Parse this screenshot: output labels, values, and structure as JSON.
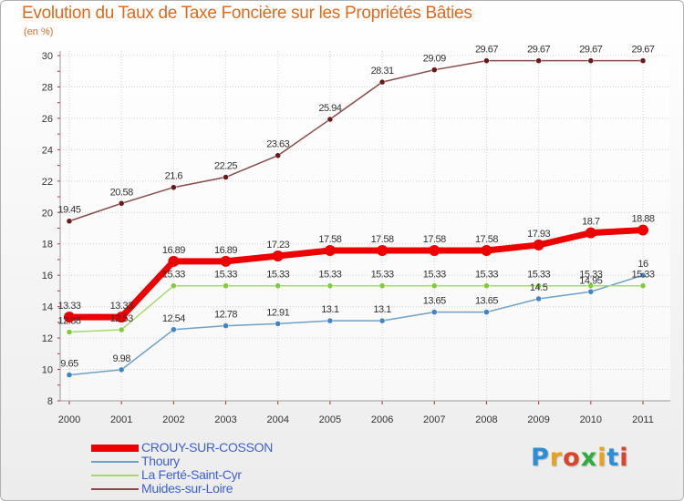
{
  "title": "Evolution du Taux de Taxe Foncière sur les Propriétés Bâties",
  "unit": "(en %)",
  "brand": {
    "text": "Proxiti",
    "letter_colors": [
      "#2c8fd6",
      "#e8a21c",
      "#d8452a",
      "#2cae3c",
      "#e8a21c",
      "#2c8fd6",
      "#d8452a"
    ]
  },
  "chart_data": {
    "type": "line",
    "title": "Evolution du Taux de Taxe Foncière sur les Propriétés Bâties",
    "ylabel": "(en %)",
    "xlabel": "",
    "x": [
      "2000",
      "2001",
      "2002",
      "2003",
      "2004",
      "2005",
      "2006",
      "2007",
      "2008",
      "2009",
      "2010",
      "2011"
    ],
    "ylim": [
      8,
      30
    ],
    "yticks": [
      8,
      10,
      12,
      14,
      16,
      18,
      20,
      22,
      24,
      26,
      28,
      30
    ],
    "grid": true,
    "series": [
      {
        "name": "CROUY-SUR-COSSON",
        "color": "#ee0000",
        "marker_color": "#ee0000",
        "width": 7,
        "values": [
          13.33,
          13.33,
          16.89,
          16.89,
          17.23,
          17.58,
          17.58,
          17.58,
          17.58,
          17.93,
          18.7,
          18.88
        ],
        "labels": [
          "13.33",
          "13.33",
          "16.89",
          "16.89",
          "17.23",
          "17.58",
          "17.58",
          "17.58",
          "17.58",
          "17.93",
          "18.7",
          "18.88"
        ]
      },
      {
        "name": "Thoury",
        "color": "#6fa0c8",
        "marker_color": "#3e84c6",
        "width": 1.5,
        "values": [
          9.65,
          9.98,
          12.54,
          12.78,
          12.91,
          13.1,
          13.1,
          13.65,
          13.65,
          14.5,
          14.95,
          16
        ],
        "labels": [
          "9.65",
          "9.98",
          "12.54",
          "12.78",
          "12.91",
          "13.1",
          "13.1",
          "13.65",
          "13.65",
          "14.5",
          "14.95",
          "16"
        ]
      },
      {
        "name": "La Ferté-Saint-Cyr",
        "color": "#a6d96a",
        "marker_color": "#7fcc3a",
        "width": 1.5,
        "values": [
          12.38,
          12.53,
          15.33,
          15.33,
          15.33,
          15.33,
          15.33,
          15.33,
          15.33,
          15.33,
          15.33,
          15.33
        ],
        "labels": [
          "12.38",
          "12.53",
          "15.33",
          "15.33",
          "15.33",
          "15.33",
          "15.33",
          "15.33",
          "15.33",
          "15.33",
          "15.33",
          "15.33"
        ]
      },
      {
        "name": "Muides-sur-Loire",
        "color": "#8a4a4a",
        "marker_color": "#6a1a1a",
        "width": 1.5,
        "values": [
          19.45,
          20.58,
          21.6,
          22.25,
          23.63,
          25.94,
          28.31,
          29.09,
          29.67,
          29.67,
          29.67,
          29.67
        ],
        "labels": [
          "19.45",
          "20.58",
          "21.6",
          "22.25",
          "23.63",
          "25.94",
          "28.31",
          "29.09",
          "29.67",
          "29.67",
          "29.67",
          "29.67"
        ]
      }
    ],
    "legend_position": "bottom-left"
  }
}
